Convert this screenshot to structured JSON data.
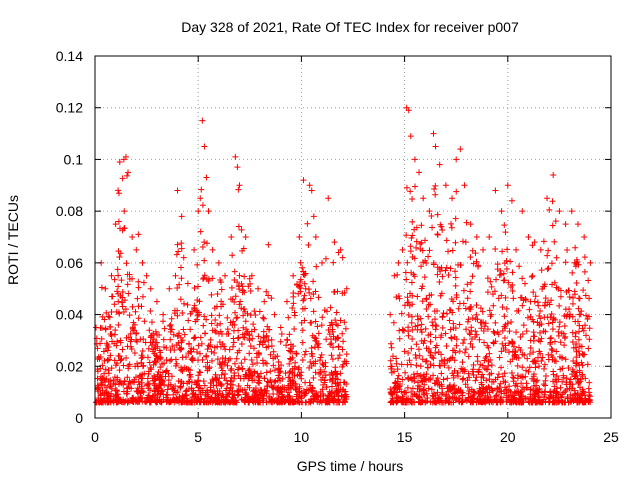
{
  "chart_data": {
    "type": "scatter",
    "title": "Day 328 of 2021, Rate Of TEC Index for receiver p007",
    "xlabel": "GPS time / hours",
    "ylabel": "ROTI / TECUs",
    "xlim": [
      0,
      25
    ],
    "ylim": [
      0,
      0.14
    ],
    "xticks": [
      0,
      5,
      10,
      15,
      20,
      25
    ],
    "yticks": [
      0,
      0.02,
      0.04,
      0.06,
      0.08,
      0.1,
      0.12,
      0.14
    ],
    "xtick_labels": [
      "0",
      "5",
      "10",
      "15",
      "20",
      "25"
    ],
    "ytick_labels": [
      "0",
      "0.02",
      "0.04",
      "0.06",
      "0.08",
      "0.1",
      "0.12",
      "0.14"
    ],
    "grid": true,
    "marker": "+",
    "color": "#ff0000",
    "legend": "none",
    "data_gap_hours": [
      12.3,
      14.2
    ],
    "series": [
      {
        "x": [
          0.05,
          0.3,
          0.5,
          0.8,
          1.0,
          1.2,
          1.4,
          1.5,
          1.6,
          1.8,
          2.0,
          2.1,
          2.3,
          2.5,
          2.7,
          3.0,
          3.3,
          3.6,
          3.9,
          4.0,
          4.2,
          4.3,
          4.5,
          4.8,
          5.0,
          5.1,
          5.2,
          5.3,
          5.4,
          5.5,
          5.7,
          6.0,
          6.3,
          6.6,
          6.8,
          6.9,
          7.0,
          7.3,
          7.6,
          7.9,
          8.2,
          8.4,
          8.7,
          9.0,
          9.3,
          9.6,
          9.9,
          10.1,
          10.4,
          10.5,
          10.6,
          10.7,
          11.0,
          11.3,
          11.6,
          11.8,
          11.9,
          12.0,
          12.2,
          14.3,
          14.5,
          14.7,
          14.9,
          15.1,
          15.2,
          15.3,
          15.5,
          15.7,
          15.9,
          16.2,
          16.4,
          16.5,
          16.7,
          17.0,
          17.3,
          17.5,
          17.7,
          17.9,
          18.2,
          18.5,
          18.8,
          19.1,
          19.4,
          19.7,
          20.0,
          20.2,
          20.4,
          20.7,
          21.0,
          21.3,
          21.6,
          21.9,
          22.2,
          22.5,
          22.8,
          23.1,
          23.4,
          23.7,
          24.0
        ],
        "y": [
          0.035,
          0.06,
          0.05,
          0.055,
          0.075,
          0.099,
          0.1,
          0.101,
          0.095,
          0.07,
          0.065,
          0.071,
          0.06,
          0.055,
          0.05,
          0.045,
          0.04,
          0.05,
          0.055,
          0.088,
          0.078,
          0.062,
          0.052,
          0.065,
          0.08,
          0.085,
          0.115,
          0.105,
          0.093,
          0.08,
          0.065,
          0.06,
          0.055,
          0.07,
          0.101,
          0.097,
          0.09,
          0.07,
          0.055,
          0.05,
          0.045,
          0.067,
          0.04,
          0.035,
          0.045,
          0.055,
          0.07,
          0.092,
          0.09,
          0.088,
          0.078,
          0.07,
          0.06,
          0.085,
          0.068,
          0.064,
          0.065,
          0.062,
          0.05,
          0.04,
          0.055,
          0.06,
          0.065,
          0.12,
          0.119,
          0.109,
          0.1,
          0.095,
          0.085,
          0.08,
          0.11,
          0.105,
          0.098,
          0.09,
          0.085,
          0.1,
          0.104,
          0.09,
          0.075,
          0.07,
          0.065,
          0.07,
          0.088,
          0.08,
          0.09,
          0.084,
          0.065,
          0.08,
          0.07,
          0.068,
          0.065,
          0.085,
          0.094,
          0.08,
          0.075,
          0.08,
          0.075,
          0.07,
          0.06
        ]
      }
    ]
  }
}
